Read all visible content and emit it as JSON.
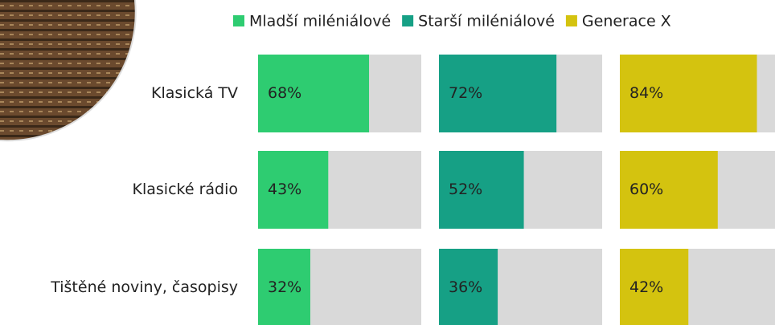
{
  "chart_data": {
    "type": "bar",
    "categories": [
      "Klasická TV",
      "Klasické rádio",
      "Tištěné noviny, časopisy"
    ],
    "xlim": [
      0,
      100
    ],
    "series": [
      {
        "name": "Mladší miléniálové",
        "color": "#2ecc71",
        "values": [
          68,
          43,
          32
        ],
        "value_labels": [
          "68%",
          "43%",
          "32%"
        ]
      },
      {
        "name": "Starší miléniálové",
        "color": "#16a085",
        "values": [
          72,
          52,
          36
        ],
        "value_labels": [
          "72%",
          "52%",
          "36%"
        ]
      },
      {
        "name": "Generace X",
        "color": "#d4c30f",
        "values": [
          84,
          60,
          42
        ],
        "value_labels": [
          "84%",
          "60%",
          "42%"
        ]
      }
    ]
  }
}
